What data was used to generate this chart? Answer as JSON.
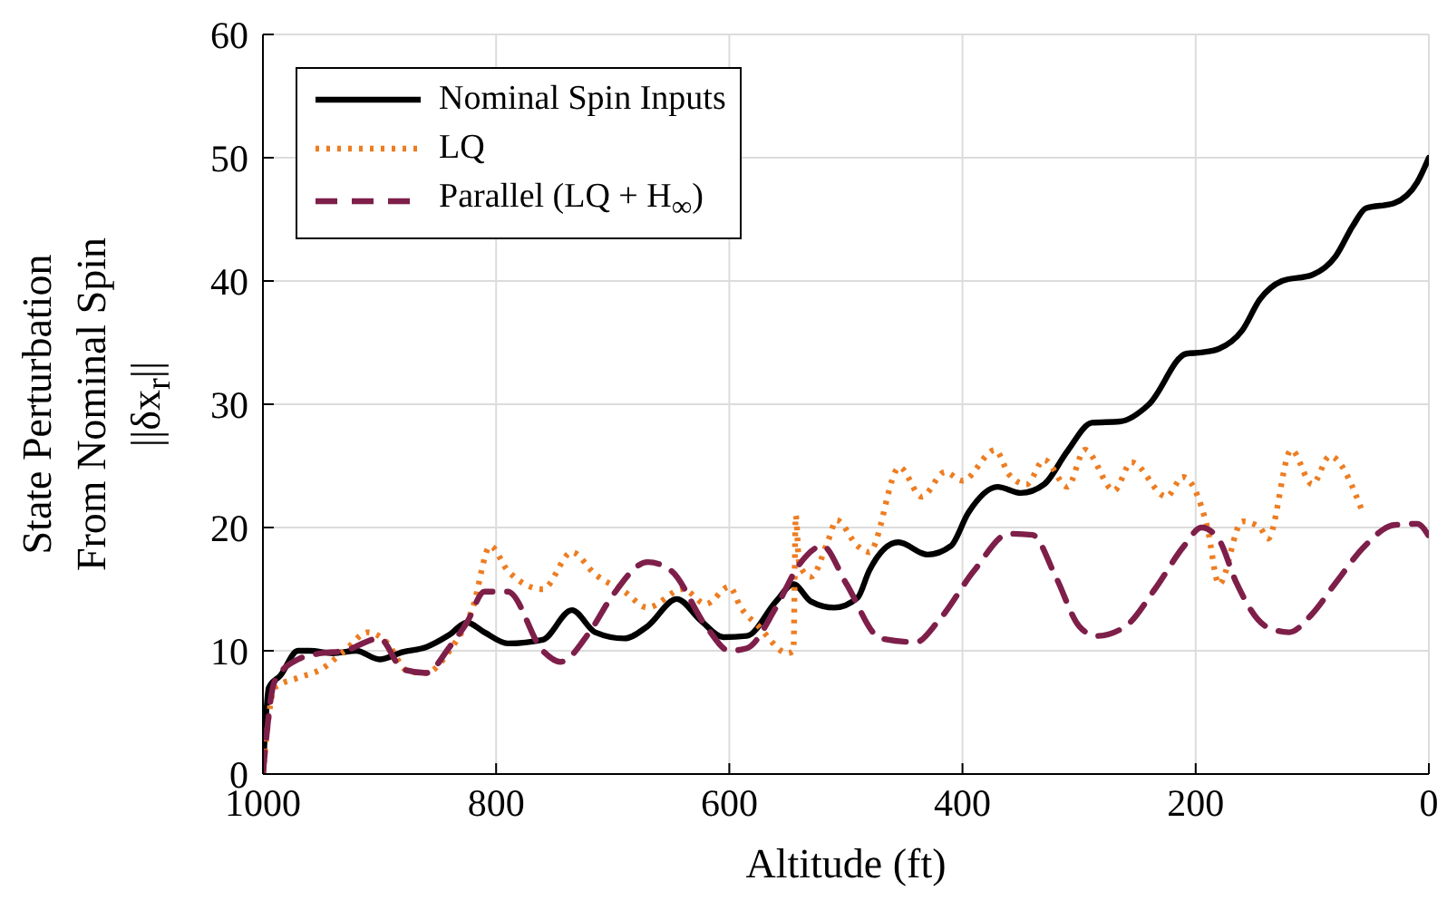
{
  "chart_data": {
    "type": "line",
    "xlabel": "Altitude (ft)",
    "ylabel": "State Perturbation\nFrom Nominal Spin\n||δx$_{r}$||",
    "xlim": [
      1000,
      0
    ],
    "xticks": [
      1000,
      800,
      600,
      400,
      200,
      0
    ],
    "ylim": [
      0,
      60
    ],
    "yticks": [
      0,
      10,
      20,
      30,
      40,
      50,
      60
    ],
    "grid": true,
    "legend": "top left",
    "series": [
      {
        "name": "Nominal Spin Inputs",
        "color": "#000000",
        "line_style": "solid",
        "x": [
          1000,
          995,
          985,
          970,
          960,
          940,
          920,
          900,
          880,
          860,
          840,
          825,
          810,
          790,
          760,
          735,
          715,
          690,
          670,
          645,
          625,
          605,
          585,
          560,
          545,
          530,
          510,
          490,
          480,
          455,
          430,
          410,
          395,
          370,
          350,
          330,
          310,
          289,
          265,
          240,
          208,
          195,
          180,
          160,
          145,
          126,
          100,
          80,
          65,
          54,
          30,
          10,
          0
        ],
        "values": [
          0,
          7,
          8,
          10,
          10,
          9.8,
          10,
          9.3,
          9.9,
          10.3,
          11.3,
          12.3,
          11.5,
          10.6,
          10.9,
          13.3,
          11.5,
          11,
          12,
          14.2,
          12.5,
          11.1,
          11.2,
          14,
          15.4,
          14,
          13.5,
          14.3,
          16.5,
          18.8,
          17.8,
          18.5,
          21.2,
          23.3,
          22.8,
          23.5,
          26.2,
          28.5,
          28.6,
          30,
          34.1,
          34.2,
          34.5,
          36,
          38.5,
          40,
          40.5,
          42,
          44.5,
          45.9,
          46.3,
          48,
          50
        ]
      },
      {
        "name": "LQ",
        "color": "#ed7d22",
        "line_style": "dotted",
        "x": [
          1000,
          990,
          970,
          950,
          930,
          910,
          895,
          875,
          860,
          840,
          820,
          805,
          790,
          760,
          735,
          715,
          690,
          670,
          640,
          620,
          600,
          590,
          575,
          550,
          545,
          543,
          540,
          530,
          515,
          508,
          490,
          480,
          454,
          435,
          415,
          400,
          372,
          360,
          345,
          330,
          310,
          295,
          270,
          255,
          225,
          211,
          190,
          180,
          160,
          145,
          138,
          118,
          100,
          85,
          57
        ],
        "values": [
          0,
          7,
          7.8,
          8.5,
          10,
          11.5,
          10.8,
          8.3,
          8.2,
          10,
          13.5,
          18.5,
          16.5,
          15,
          18,
          16.2,
          14.8,
          13.5,
          15,
          13.8,
          15.2,
          13.5,
          12,
          9.8,
          10,
          21,
          17,
          16,
          19,
          20.6,
          18.5,
          18,
          24.9,
          22.5,
          24.5,
          23.8,
          26.3,
          24.3,
          23.5,
          25.5,
          23.3,
          26.3,
          23,
          25.3,
          22.5,
          24.1,
          20,
          15.4,
          20.5,
          20,
          19.1,
          26.3,
          23.5,
          25.8,
          21.3
        ]
      },
      {
        "name": "Parallel (LQ + H$_{∞}$)",
        "color": "#7e1f4a",
        "line_style": "dashed",
        "x": [
          1000,
          990,
          970,
          950,
          930,
          900,
          880,
          860,
          840,
          825,
          810,
          790,
          760,
          745,
          720,
          700,
          670,
          650,
          620,
          600,
          585,
          560,
          540,
          520,
          500,
          470,
          440,
          420,
          390,
          360,
          340,
          320,
          300,
          285,
          260,
          235,
          210,
          195,
          180,
          165,
          140,
          120,
          100,
          80,
          55,
          30,
          10,
          0
        ],
        "values": [
          0,
          7.5,
          9.3,
          9.8,
          10,
          11,
          8.5,
          8.2,
          10.3,
          12.3,
          14.8,
          14.8,
          10,
          9.1,
          11.5,
          14.5,
          17.2,
          16.5,
          12,
          10,
          10.2,
          13.5,
          17,
          18.5,
          15.5,
          11,
          10.7,
          12.5,
          16.5,
          19.5,
          19.4,
          16,
          12,
          11.2,
          12,
          15,
          18.5,
          20,
          19,
          15.5,
          12,
          11.5,
          13,
          15.5,
          18.5,
          20.2,
          20.3,
          19.3
        ]
      }
    ]
  }
}
